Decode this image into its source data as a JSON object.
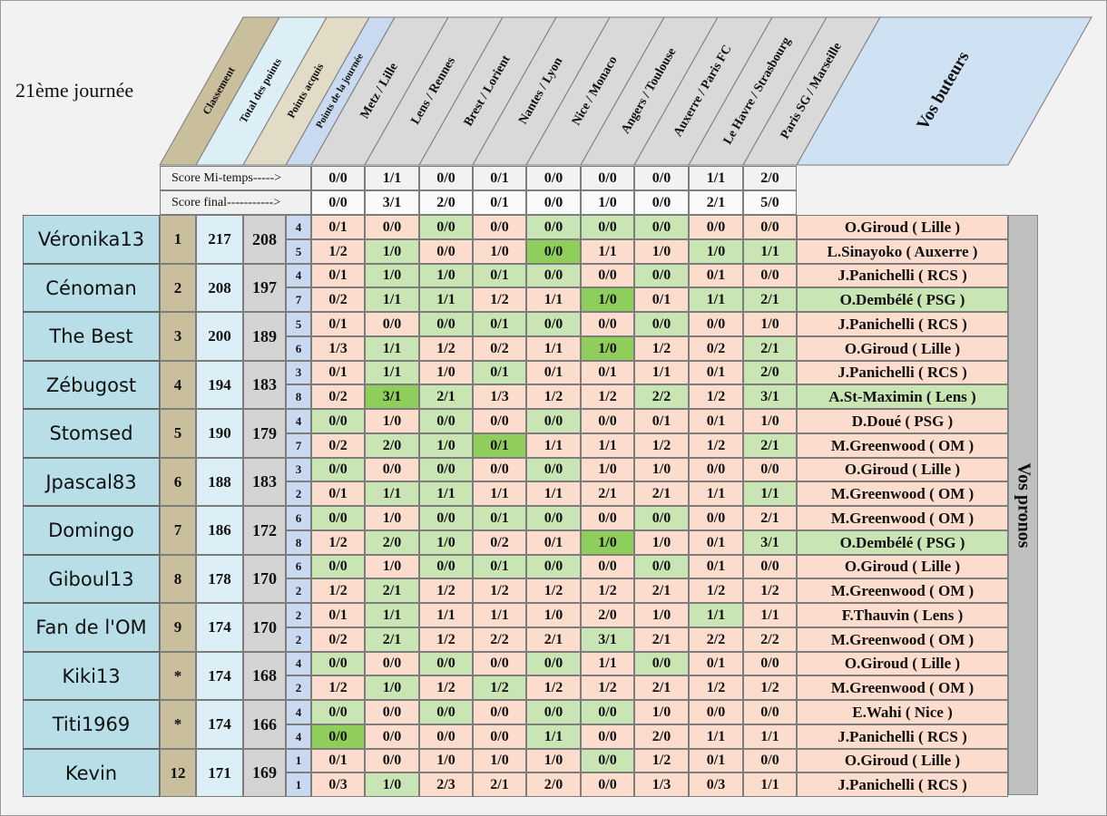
{
  "title": "21ème journée",
  "headers": {
    "classement": "Classement",
    "total": "Total des points",
    "acquis": "Points acquis",
    "journee": "Points de la journée",
    "matches": [
      "Metz / Lille",
      "Lens / Rennes",
      "Brest / Lorient",
      "Nantes / Lyon",
      "Nice / Monaco",
      "Angers / Toulouse",
      "Auxerre / Paris FC",
      "Le Havre / Strasbourg",
      "Paris SG / Marseille"
    ],
    "buteurs": "Vos buteurs"
  },
  "score_mi_label": "Score Mi-temps----->",
  "score_final_label": "Score final----------->",
  "score_mi": [
    "0/0",
    "1/1",
    "0/0",
    "0/1",
    "0/0",
    "0/0",
    "0/0",
    "1/1",
    "2/0"
  ],
  "score_final": [
    "0/0",
    "3/1",
    "2/0",
    "0/1",
    "0/0",
    "1/0",
    "0/0",
    "2/1",
    "5/0"
  ],
  "vos_pronos": "Vos pronos",
  "colors": {
    "exact": "#8fce5a",
    "good": "#c9e5b4",
    "wrong": "#fbdccd",
    "buteur": "#fbdccd",
    "buteur_good": "#c9e5b4"
  },
  "players": [
    {
      "name": "Véronika13",
      "rank": "1",
      "total": "217",
      "acquis": "208",
      "pts": [
        "4",
        "5"
      ],
      "pronos": [
        [
          "0/1",
          "0/0",
          "0/0",
          "0/0",
          "0/0",
          "0/0",
          "0/0",
          "0/0",
          "0/0"
        ],
        [
          "1/2",
          "1/0",
          "0/0",
          "1/0",
          "0/0",
          "1/1",
          "1/0",
          "1/0",
          "1/1"
        ]
      ],
      "marks": [
        [
          "w",
          "w",
          "g",
          "w",
          "g",
          "g",
          "g",
          "w",
          "w"
        ],
        [
          "w",
          "g",
          "w",
          "w",
          "e",
          "w",
          "w",
          "g",
          "g"
        ]
      ],
      "buteurs": [
        "O.Giroud ( Lille )",
        "L.Sinayoko ( Auxerre )"
      ],
      "bmarks": [
        "w",
        "w"
      ]
    },
    {
      "name": "Cénoman",
      "rank": "2",
      "total": "208",
      "acquis": "197",
      "pts": [
        "4",
        "7"
      ],
      "pronos": [
        [
          "0/1",
          "1/0",
          "1/0",
          "0/1",
          "0/0",
          "0/0",
          "0/0",
          "0/1",
          "0/0"
        ],
        [
          "0/2",
          "1/1",
          "1/1",
          "1/2",
          "1/1",
          "1/0",
          "0/1",
          "1/1",
          "2/1"
        ]
      ],
      "marks": [
        [
          "w",
          "g",
          "g",
          "g",
          "g",
          "w",
          "g",
          "w",
          "w"
        ],
        [
          "w",
          "g",
          "g",
          "w",
          "w",
          "e",
          "w",
          "g",
          "g"
        ]
      ],
      "buteurs": [
        "J.Panichelli ( RCS )",
        "O.Dembélé ( PSG )"
      ],
      "bmarks": [
        "w",
        "g"
      ]
    },
    {
      "name": "The Best",
      "rank": "3",
      "total": "200",
      "acquis": "189",
      "pts": [
        "5",
        "6"
      ],
      "pronos": [
        [
          "0/1",
          "0/0",
          "0/0",
          "0/1",
          "0/0",
          "0/0",
          "0/0",
          "0/0",
          "1/0"
        ],
        [
          "1/3",
          "1/1",
          "1/2",
          "0/2",
          "1/1",
          "1/0",
          "1/2",
          "0/2",
          "2/1"
        ]
      ],
      "marks": [
        [
          "w",
          "w",
          "g",
          "g",
          "g",
          "w",
          "g",
          "w",
          "w"
        ],
        [
          "w",
          "g",
          "w",
          "w",
          "w",
          "e",
          "w",
          "w",
          "g"
        ]
      ],
      "buteurs": [
        "J.Panichelli ( RCS )",
        "O.Giroud ( Lille )"
      ],
      "bmarks": [
        "w",
        "w"
      ]
    },
    {
      "name": "Zébugost",
      "rank": "4",
      "total": "194",
      "acquis": "183",
      "pts": [
        "3",
        "8"
      ],
      "pronos": [
        [
          "0/1",
          "1/1",
          "1/0",
          "0/1",
          "0/1",
          "0/1",
          "1/1",
          "0/1",
          "2/0"
        ],
        [
          "0/2",
          "3/1",
          "2/1",
          "1/3",
          "1/2",
          "1/2",
          "2/2",
          "1/2",
          "3/1"
        ]
      ],
      "marks": [
        [
          "w",
          "g",
          "w",
          "g",
          "w",
          "w",
          "w",
          "w",
          "g"
        ],
        [
          "w",
          "e",
          "g",
          "w",
          "w",
          "w",
          "g",
          "w",
          "g"
        ]
      ],
      "buteurs": [
        "J.Panichelli ( RCS )",
        "A.St-Maximin ( Lens )"
      ],
      "bmarks": [
        "w",
        "g"
      ]
    },
    {
      "name": "Stomsed",
      "rank": "5",
      "total": "190",
      "acquis": "179",
      "pts": [
        "4",
        "7"
      ],
      "pronos": [
        [
          "0/0",
          "1/0",
          "0/0",
          "0/0",
          "0/0",
          "0/0",
          "0/1",
          "0/1",
          "1/0"
        ],
        [
          "0/2",
          "2/0",
          "1/0",
          "0/1",
          "1/1",
          "1/1",
          "1/2",
          "1/2",
          "2/1"
        ]
      ],
      "marks": [
        [
          "g",
          "w",
          "g",
          "w",
          "g",
          "w",
          "w",
          "w",
          "w"
        ],
        [
          "w",
          "g",
          "g",
          "e",
          "w",
          "w",
          "w",
          "w",
          "g"
        ]
      ],
      "buteurs": [
        "D.Doué ( PSG )",
        "M.Greenwood ( OM )"
      ],
      "bmarks": [
        "w",
        "w"
      ]
    },
    {
      "name": "Jpascal83",
      "rank": "6",
      "total": "188",
      "acquis": "183",
      "pts": [
        "3",
        "2"
      ],
      "pronos": [
        [
          "0/0",
          "0/0",
          "0/0",
          "0/0",
          "0/0",
          "1/0",
          "1/0",
          "0/0",
          "0/0"
        ],
        [
          "0/1",
          "1/1",
          "1/1",
          "1/1",
          "1/1",
          "2/1",
          "2/1",
          "1/1",
          "1/1"
        ]
      ],
      "marks": [
        [
          "g",
          "w",
          "g",
          "w",
          "g",
          "w",
          "w",
          "w",
          "w"
        ],
        [
          "w",
          "g",
          "g",
          "w",
          "w",
          "w",
          "w",
          "w",
          "g"
        ]
      ],
      "buteurs": [
        "O.Giroud ( Lille )",
        "M.Greenwood ( OM )"
      ],
      "bmarks": [
        "w",
        "w"
      ]
    },
    {
      "name": "Domingo",
      "rank": "7",
      "total": "186",
      "acquis": "172",
      "pts": [
        "6",
        "8"
      ],
      "pronos": [
        [
          "0/0",
          "1/0",
          "0/0",
          "0/1",
          "0/0",
          "0/0",
          "0/0",
          "0/0",
          "2/1"
        ],
        [
          "1/2",
          "2/0",
          "1/0",
          "0/2",
          "0/1",
          "1/0",
          "1/0",
          "0/1",
          "3/1"
        ]
      ],
      "marks": [
        [
          "g",
          "w",
          "g",
          "g",
          "g",
          "w",
          "g",
          "w",
          "w"
        ],
        [
          "w",
          "g",
          "g",
          "w",
          "w",
          "e",
          "w",
          "w",
          "g"
        ]
      ],
      "buteurs": [
        "M.Greenwood ( OM )",
        "O.Dembélé ( PSG )"
      ],
      "bmarks": [
        "w",
        "g"
      ]
    },
    {
      "name": "Giboul13",
      "rank": "8",
      "total": "178",
      "acquis": "170",
      "pts": [
        "6",
        "2"
      ],
      "pronos": [
        [
          "0/0",
          "1/0",
          "0/0",
          "0/1",
          "0/0",
          "0/0",
          "0/0",
          "0/1",
          "0/0"
        ],
        [
          "1/2",
          "2/1",
          "1/2",
          "1/2",
          "1/2",
          "1/2",
          "2/1",
          "1/2",
          "1/2"
        ]
      ],
      "marks": [
        [
          "g",
          "w",
          "g",
          "g",
          "g",
          "w",
          "g",
          "w",
          "w"
        ],
        [
          "w",
          "g",
          "w",
          "w",
          "w",
          "w",
          "w",
          "w",
          "w"
        ]
      ],
      "buteurs": [
        "O.Giroud ( Lille )",
        "M.Greenwood ( OM )"
      ],
      "bmarks": [
        "w",
        "w"
      ]
    },
    {
      "name": "Fan de l'OM",
      "rank": "9",
      "total": "174",
      "acquis": "170",
      "pts": [
        "2",
        "2"
      ],
      "pronos": [
        [
          "0/1",
          "1/1",
          "1/1",
          "1/1",
          "1/0",
          "2/0",
          "1/0",
          "1/1",
          "1/1"
        ],
        [
          "0/2",
          "2/1",
          "1/2",
          "2/2",
          "2/1",
          "3/1",
          "2/1",
          "2/2",
          "2/2"
        ]
      ],
      "marks": [
        [
          "w",
          "g",
          "w",
          "w",
          "w",
          "w",
          "w",
          "g",
          "w"
        ],
        [
          "w",
          "g",
          "w",
          "w",
          "w",
          "g",
          "w",
          "w",
          "w"
        ]
      ],
      "buteurs": [
        "F.Thauvin ( Lens )",
        "M.Greenwood ( OM )"
      ],
      "bmarks": [
        "w",
        "w"
      ]
    },
    {
      "name": "Kiki13",
      "rank": "*",
      "total": "174",
      "acquis": "168",
      "pts": [
        "4",
        "2"
      ],
      "pronos": [
        [
          "0/0",
          "0/0",
          "0/0",
          "0/0",
          "0/0",
          "1/1",
          "0/0",
          "0/1",
          "0/0"
        ],
        [
          "1/2",
          "1/0",
          "1/2",
          "1/2",
          "1/2",
          "1/2",
          "2/1",
          "1/2",
          "1/2"
        ]
      ],
      "marks": [
        [
          "g",
          "w",
          "g",
          "w",
          "g",
          "w",
          "g",
          "w",
          "w"
        ],
        [
          "w",
          "g",
          "w",
          "g",
          "w",
          "w",
          "w",
          "w",
          "w"
        ]
      ],
      "buteurs": [
        "O.Giroud ( Lille )",
        "M.Greenwood ( OM )"
      ],
      "bmarks": [
        "w",
        "w"
      ]
    },
    {
      "name": "Titi1969",
      "rank": "*",
      "total": "174",
      "acquis": "166",
      "pts": [
        "4",
        "4"
      ],
      "pronos": [
        [
          "0/0",
          "0/0",
          "0/0",
          "0/0",
          "0/0",
          "0/0",
          "1/0",
          "0/0",
          "0/0"
        ],
        [
          "0/0",
          "0/0",
          "0/0",
          "0/0",
          "1/1",
          "0/0",
          "2/0",
          "1/1",
          "1/1"
        ]
      ],
      "marks": [
        [
          "g",
          "w",
          "g",
          "w",
          "g",
          "g",
          "w",
          "w",
          "w"
        ],
        [
          "e",
          "w",
          "w",
          "w",
          "g",
          "w",
          "w",
          "w",
          "w"
        ]
      ],
      "buteurs": [
        "E.Wahi ( Nice )",
        "J.Panichelli ( RCS )"
      ],
      "bmarks": [
        "w",
        "w"
      ]
    },
    {
      "name": "Kevin",
      "rank": "12",
      "total": "171",
      "acquis": "169",
      "pts": [
        "1",
        "1"
      ],
      "pronos": [
        [
          "0/1",
          "0/0",
          "1/0",
          "1/0",
          "1/0",
          "0/0",
          "1/2",
          "0/1",
          "0/0"
        ],
        [
          "0/3",
          "1/0",
          "2/3",
          "2/1",
          "2/0",
          "0/0",
          "1/3",
          "0/3",
          "1/1"
        ]
      ],
      "marks": [
        [
          "w",
          "w",
          "w",
          "w",
          "w",
          "g",
          "w",
          "w",
          "w"
        ],
        [
          "w",
          "g",
          "w",
          "w",
          "w",
          "w",
          "w",
          "w",
          "w"
        ]
      ],
      "buteurs": [
        "O.Giroud ( Lille )",
        "J.Panichelli ( RCS )"
      ],
      "bmarks": [
        "w",
        "w"
      ]
    }
  ]
}
